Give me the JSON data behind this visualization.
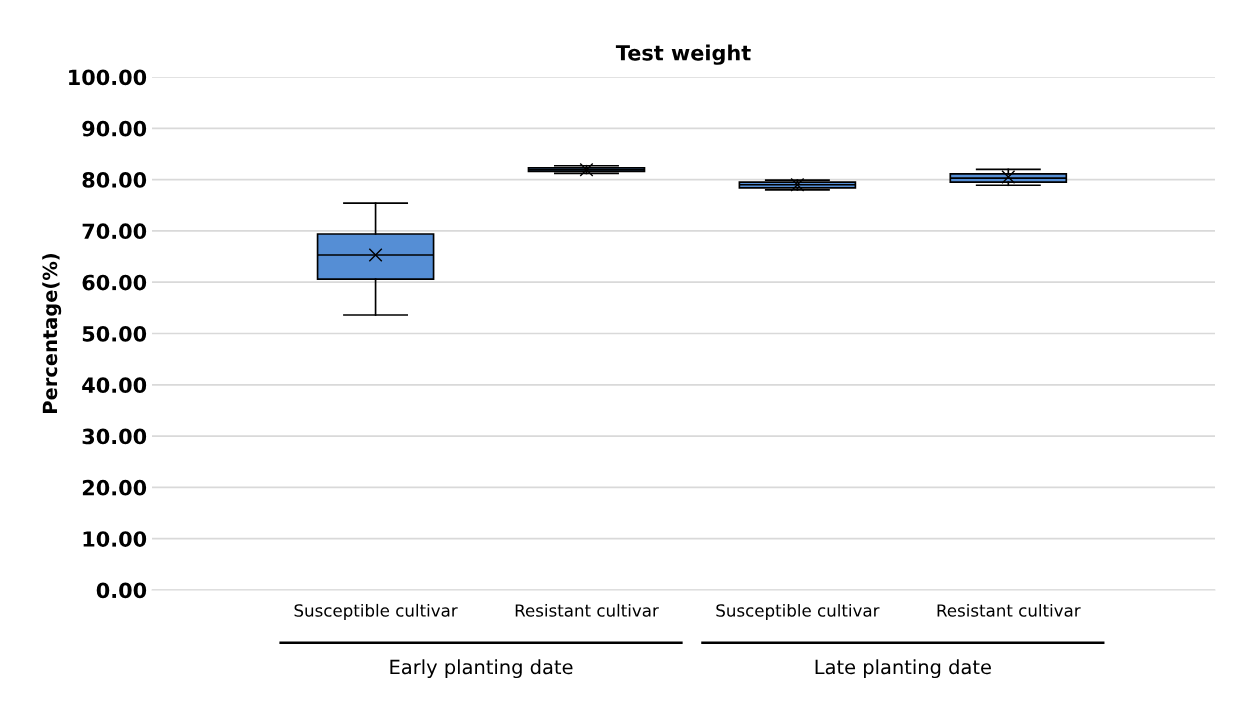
{
  "chart_data": {
    "type": "box",
    "title": "Test weight",
    "ylabel": "Percentage(%)",
    "categories": [
      "Susceptible cultivar",
      "Resistant cultivar",
      "Susceptible cultivar",
      "Resistant cultivar"
    ],
    "annotations": [
      "Early planting date",
      "Late planting date"
    ],
    "color": "#558ed5",
    "boxes": [
      {
        "low": 53.6,
        "q1": 60.6,
        "median": 65.3,
        "q3": 69.4,
        "high": 75.4,
        "mean": 65.3
      },
      {
        "low": 81.2,
        "q1": 81.6,
        "median": 81.9,
        "q3": 82.3,
        "high": 82.7,
        "mean": 81.9
      },
      {
        "low": 78.0,
        "q1": 78.4,
        "median": 79.0,
        "q3": 79.5,
        "high": 79.9,
        "mean": 79.0
      },
      {
        "low": 78.9,
        "q1": 79.5,
        "median": 80.3,
        "q3": 81.1,
        "high": 82.0,
        "mean": 80.5
      }
    ],
    "ylim": [
      0,
      100
    ],
    "yticks": [
      {
        "value": 0,
        "label": "0.00"
      },
      {
        "value": 10,
        "label": "10.00"
      },
      {
        "value": 20,
        "label": "20.00"
      },
      {
        "value": 30,
        "label": "30.00"
      },
      {
        "value": 40,
        "label": "40.00"
      },
      {
        "value": 50,
        "label": "50.00"
      },
      {
        "value": 60,
        "label": "60.00"
      },
      {
        "value": 70,
        "label": "70.00"
      },
      {
        "value": 80,
        "label": "80.00"
      },
      {
        "value": 90,
        "label": "90.00"
      },
      {
        "value": 100,
        "label": "100.00"
      }
    ],
    "grid": "y",
    "marker": "cross"
  }
}
